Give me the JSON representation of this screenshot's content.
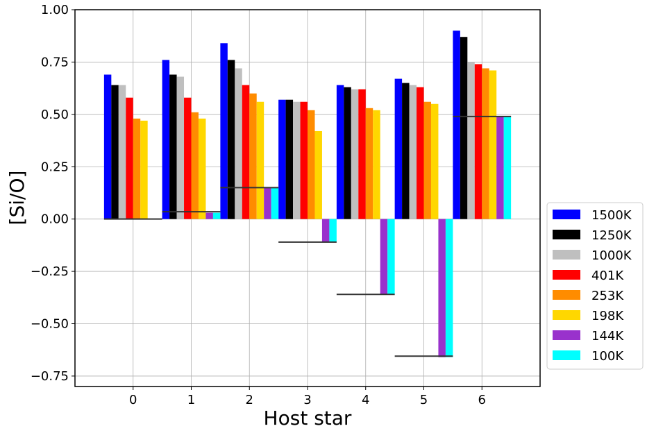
{
  "chart_data": {
    "type": "bar",
    "xlabel": "Host star",
    "ylabel": "[Si/O]",
    "ylim": [
      -0.8,
      1.0
    ],
    "yticks": [
      -0.75,
      -0.5,
      -0.25,
      0.0,
      0.25,
      0.5,
      0.75,
      1.0
    ],
    "ytick_labels": [
      "−0.75",
      "−0.50",
      "−0.25",
      "0.00",
      "0.25",
      "0.50",
      "0.75",
      "1.00"
    ],
    "categories": [
      "0",
      "1",
      "2",
      "3",
      "4",
      "5",
      "6"
    ],
    "grid": true,
    "legend_position": "lower-right outside",
    "series": [
      {
        "name": "1500K",
        "color": "#0000ff",
        "values": [
          0.69,
          0.76,
          0.84,
          0.57,
          0.64,
          0.67,
          0.9
        ]
      },
      {
        "name": "1250K",
        "color": "#000000",
        "values": [
          0.64,
          0.69,
          0.76,
          0.57,
          0.63,
          0.65,
          0.87
        ]
      },
      {
        "name": "1000K",
        "color": "#bfbfbf",
        "values": [
          0.64,
          0.68,
          0.72,
          0.56,
          0.62,
          0.64,
          0.75
        ]
      },
      {
        "name": "401K",
        "color": "#ff0000",
        "values": [
          0.58,
          0.58,
          0.64,
          0.56,
          0.62,
          0.63,
          0.74
        ]
      },
      {
        "name": "253K",
        "color": "#ff8c00",
        "values": [
          0.48,
          0.51,
          0.6,
          0.52,
          0.53,
          0.56,
          0.72
        ]
      },
      {
        "name": "198K",
        "color": "#ffd700",
        "values": [
          0.47,
          0.48,
          0.56,
          0.42,
          0.52,
          0.55,
          0.71
        ]
      },
      {
        "name": "144K",
        "color": "#9932cc",
        "values": [
          null,
          0.03,
          0.15,
          -0.11,
          -0.36,
          -0.66,
          0.49
        ]
      },
      {
        "name": "100K",
        "color": "#00ffff",
        "values": [
          null,
          0.03,
          0.15,
          -0.11,
          -0.36,
          -0.66,
          0.49
        ]
      }
    ],
    "reference_lines": [
      0.0,
      0.035,
      0.15,
      -0.11,
      -0.36,
      -0.655,
      0.49
    ]
  }
}
